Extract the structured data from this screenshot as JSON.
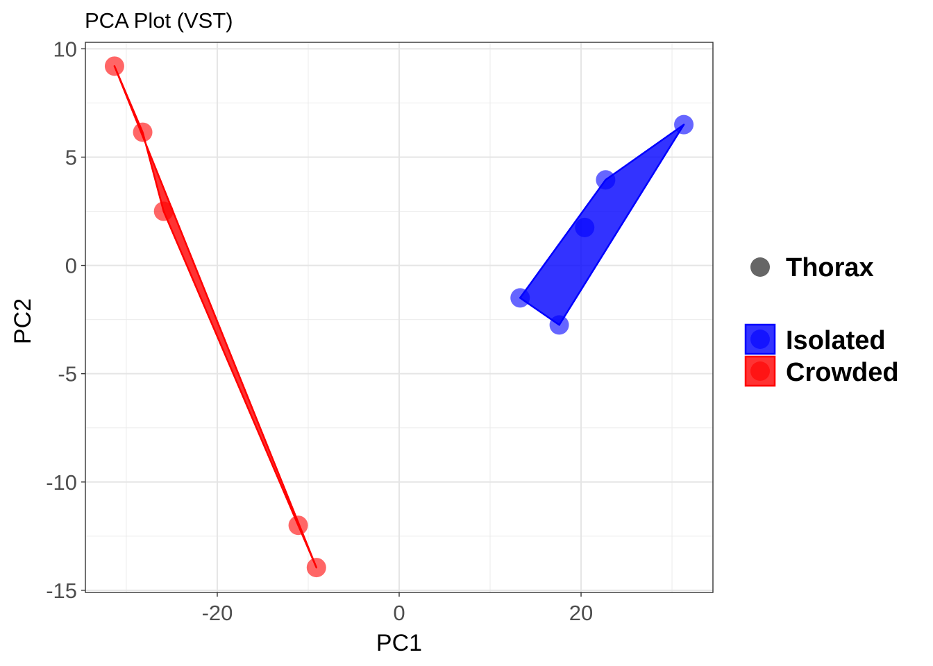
{
  "chart_data": {
    "type": "scatter",
    "title": "PCA Plot (VST)",
    "xlabel": "PC1",
    "ylabel": "PC2",
    "xlim": [
      -34.5,
      34.5
    ],
    "ylim": [
      -15.1,
      10.3
    ],
    "xticks": [
      -20,
      0,
      20
    ],
    "xtick_labels": [
      "-20",
      "0",
      "20"
    ],
    "yticks": [
      -15,
      -10,
      -5,
      0,
      5,
      10
    ],
    "ytick_labels": [
      "-15",
      "-10",
      "-5",
      "0",
      "5",
      "10"
    ],
    "grid": true,
    "legend_position": "right",
    "shape_legend": [
      {
        "label": "Thorax",
        "color": "#666666"
      }
    ],
    "series": [
      {
        "name": "Isolated",
        "color": "#0000ff",
        "points": [
          {
            "x": 13.3,
            "y": -1.5
          },
          {
            "x": 17.6,
            "y": -2.75
          },
          {
            "x": 20.4,
            "y": 1.75
          },
          {
            "x": 22.7,
            "y": 3.95
          },
          {
            "x": 31.3,
            "y": 6.5
          }
        ],
        "hull": [
          [
            13.3,
            -1.5
          ],
          [
            17.6,
            -2.75
          ],
          [
            31.3,
            6.5
          ],
          [
            22.7,
            3.95
          ]
        ]
      },
      {
        "name": "Crowded",
        "color": "#ff0000",
        "points": [
          {
            "x": -31.3,
            "y": 9.2
          },
          {
            "x": -28.2,
            "y": 6.15
          },
          {
            "x": -25.9,
            "y": 2.5
          },
          {
            "x": -11.1,
            "y": -12.0
          },
          {
            "x": -9.1,
            "y": -13.95
          }
        ],
        "hull": [
          [
            -31.3,
            9.2
          ],
          [
            -9.1,
            -13.95
          ],
          [
            -11.1,
            -12.0
          ],
          [
            -25.9,
            2.5
          ],
          [
            -28.2,
            6.15
          ]
        ]
      }
    ]
  }
}
